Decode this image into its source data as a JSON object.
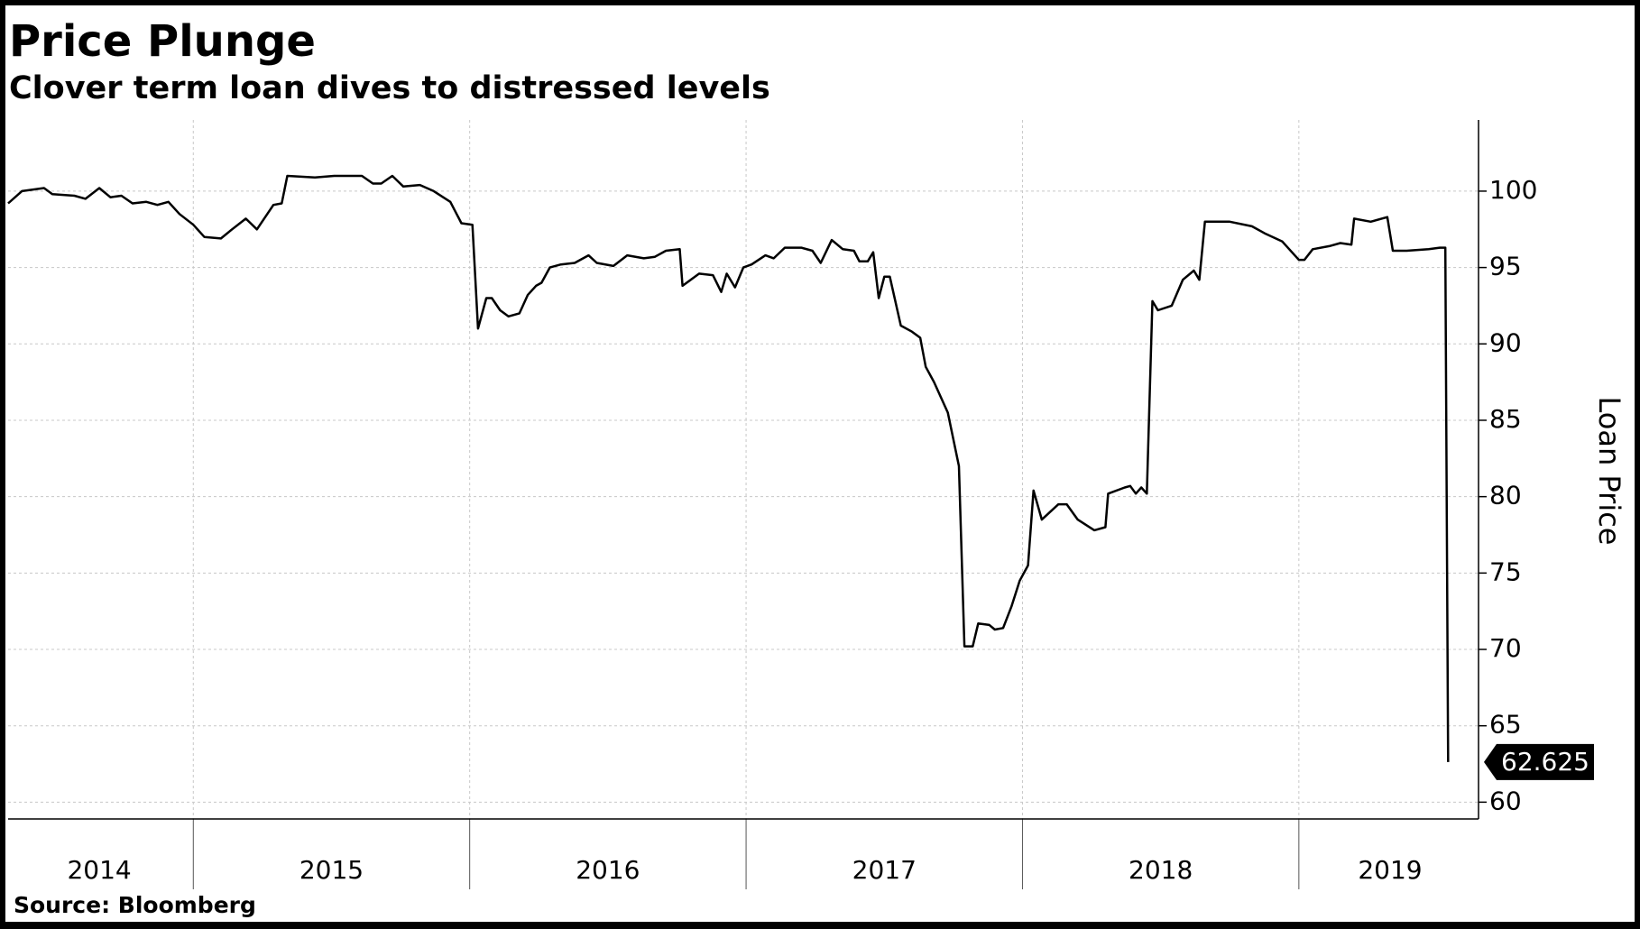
{
  "chart_data": {
    "type": "line",
    "title": "Price Plunge",
    "subtitle": "Clover term loan dives to distressed levels",
    "y_label": "Loan Price",
    "source": "Source: Bloomberg",
    "color": "#000000",
    "grid": true,
    "x": [
      2014.33,
      2014.38,
      2014.46,
      2014.49,
      2014.57,
      2014.61,
      2014.66,
      2014.7,
      2014.74,
      2014.78,
      2014.83,
      2014.87,
      2014.91,
      2014.95,
      2015.0,
      2015.04,
      2015.1,
      2015.14,
      2015.19,
      2015.23,
      2015.29,
      2015.32,
      2015.34,
      2015.44,
      2015.51,
      2015.61,
      2015.65,
      2015.68,
      2015.72,
      2015.76,
      2015.82,
      2015.87,
      2015.93,
      2015.97,
      2016.01,
      2016.03,
      2016.06,
      2016.08,
      2016.11,
      2016.14,
      2016.18,
      2016.21,
      2016.24,
      2016.26,
      2016.29,
      2016.33,
      2016.38,
      2016.43,
      2016.46,
      2016.52,
      2016.57,
      2016.63,
      2016.67,
      2016.71,
      2016.76,
      2016.77,
      2016.83,
      2016.88,
      2016.91,
      2016.93,
      2016.96,
      2016.99,
      2017.02,
      2017.07,
      2017.1,
      2017.14,
      2017.2,
      2017.24,
      2017.27,
      2017.31,
      2017.35,
      2017.39,
      2017.41,
      2017.44,
      2017.46,
      2017.48,
      2017.5,
      2017.52,
      2017.56,
      2017.6,
      2017.63,
      2017.65,
      2017.68,
      2017.73,
      2017.77,
      2017.79,
      2017.82,
      2017.84,
      2017.88,
      2017.9,
      2017.93,
      2017.96,
      2017.99,
      2018.02,
      2018.04,
      2018.07,
      2018.13,
      2018.16,
      2018.2,
      2018.26,
      2018.3,
      2018.31,
      2018.37,
      2018.39,
      2018.41,
      2018.43,
      2018.45,
      2018.47,
      2018.49,
      2018.54,
      2018.58,
      2018.62,
      2018.64,
      2018.66,
      2018.75,
      2018.83,
      2018.88,
      2018.94,
      2019.0,
      2019.02,
      2019.05,
      2019.11,
      2019.15,
      2019.19,
      2019.2,
      2019.26,
      2019.32,
      2019.34,
      2019.39,
      2019.47,
      2019.51,
      2019.53,
      2019.54
    ],
    "values": [
      99.2,
      100,
      100.2,
      99.8,
      99.7,
      99.5,
      100.2,
      99.6,
      99.7,
      99.2,
      99.3,
      99.1,
      99.3,
      98.5,
      97.8,
      97,
      96.9,
      97.5,
      98.2,
      97.5,
      99.1,
      99.2,
      101,
      100.9,
      101,
      101,
      100.5,
      100.5,
      101,
      100.3,
      100.4,
      100,
      99.3,
      97.9,
      97.8,
      91,
      93,
      93,
      92.2,
      91.8,
      92,
      93.2,
      93.8,
      94,
      95,
      95.2,
      95.3,
      95.8,
      95.3,
      95.1,
      95.8,
      95.6,
      95.7,
      96.1,
      96.2,
      93.8,
      94.6,
      94.5,
      93.4,
      94.6,
      93.7,
      95,
      95.2,
      95.8,
      95.6,
      96.3,
      96.3,
      96.1,
      95.3,
      96.8,
      96.2,
      96.1,
      95.4,
      95.4,
      96,
      93,
      94.4,
      94.4,
      91.2,
      90.8,
      90.4,
      88.5,
      87.5,
      85.5,
      82,
      70.2,
      70.2,
      71.7,
      71.6,
      71.3,
      71.4,
      72.8,
      74.5,
      75.5,
      80.4,
      78.5,
      79.5,
      79.5,
      78.5,
      77.8,
      78,
      80.2,
      80.6,
      80.7,
      80.2,
      80.6,
      80.2,
      92.8,
      92.2,
      92.5,
      94.2,
      94.8,
      94.2,
      98,
      98,
      97.7,
      97.2,
      96.7,
      95.5,
      95.5,
      96.2,
      96.4,
      96.6,
      96.5,
      98.2,
      98,
      98.3,
      96.1,
      96.1,
      96.2,
      96.3,
      96.3,
      62.625
    ],
    "xlim": [
      2014.33,
      2019.65
    ],
    "xgrid": [
      2015,
      2016,
      2017,
      2018,
      2019
    ],
    "xticks": [
      {
        "value": 2014.66,
        "label": "2014"
      },
      {
        "value": 2015.5,
        "label": "2015"
      },
      {
        "value": 2016.5,
        "label": "2016"
      },
      {
        "value": 2017.5,
        "label": "2017"
      },
      {
        "value": 2018.5,
        "label": "2018"
      },
      {
        "value": 2019.33,
        "label": "2019"
      }
    ],
    "ylim": [
      58.9,
      104.66
    ],
    "yticks": [
      60,
      65,
      70,
      75,
      80,
      85,
      90,
      95,
      100
    ]
  }
}
